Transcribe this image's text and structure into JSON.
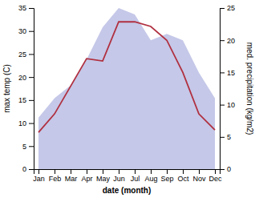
{
  "chart_data": {
    "type": "line",
    "categories": [
      "Jan",
      "Feb",
      "Mar",
      "Apr",
      "May",
      "Jun",
      "Jul",
      "Aug",
      "Sep",
      "Oct",
      "Nov",
      "Dec"
    ],
    "xlabel": "date (month)",
    "ylabel": "max temp (C)",
    "y2label": "med. precipitation (kg/m2)",
    "ylim": [
      0,
      35
    ],
    "yticks": [
      0,
      5,
      10,
      15,
      20,
      25,
      30,
      35
    ],
    "y2lim": [
      0,
      25
    ],
    "y2ticks": [
      0,
      5,
      10,
      15,
      20,
      25
    ],
    "series": [
      {
        "type": "area",
        "axis": "y2",
        "color": "#c5c8e8",
        "values": [
          8,
          11,
          13,
          17,
          22,
          25,
          24,
          20,
          21,
          20,
          15,
          11
        ]
      },
      {
        "type": "line",
        "color": "#b03040",
        "values": [
          8,
          12,
          18,
          24,
          23.5,
          32,
          32,
          31,
          28,
          21,
          12,
          8.5
        ]
      }
    ]
  }
}
